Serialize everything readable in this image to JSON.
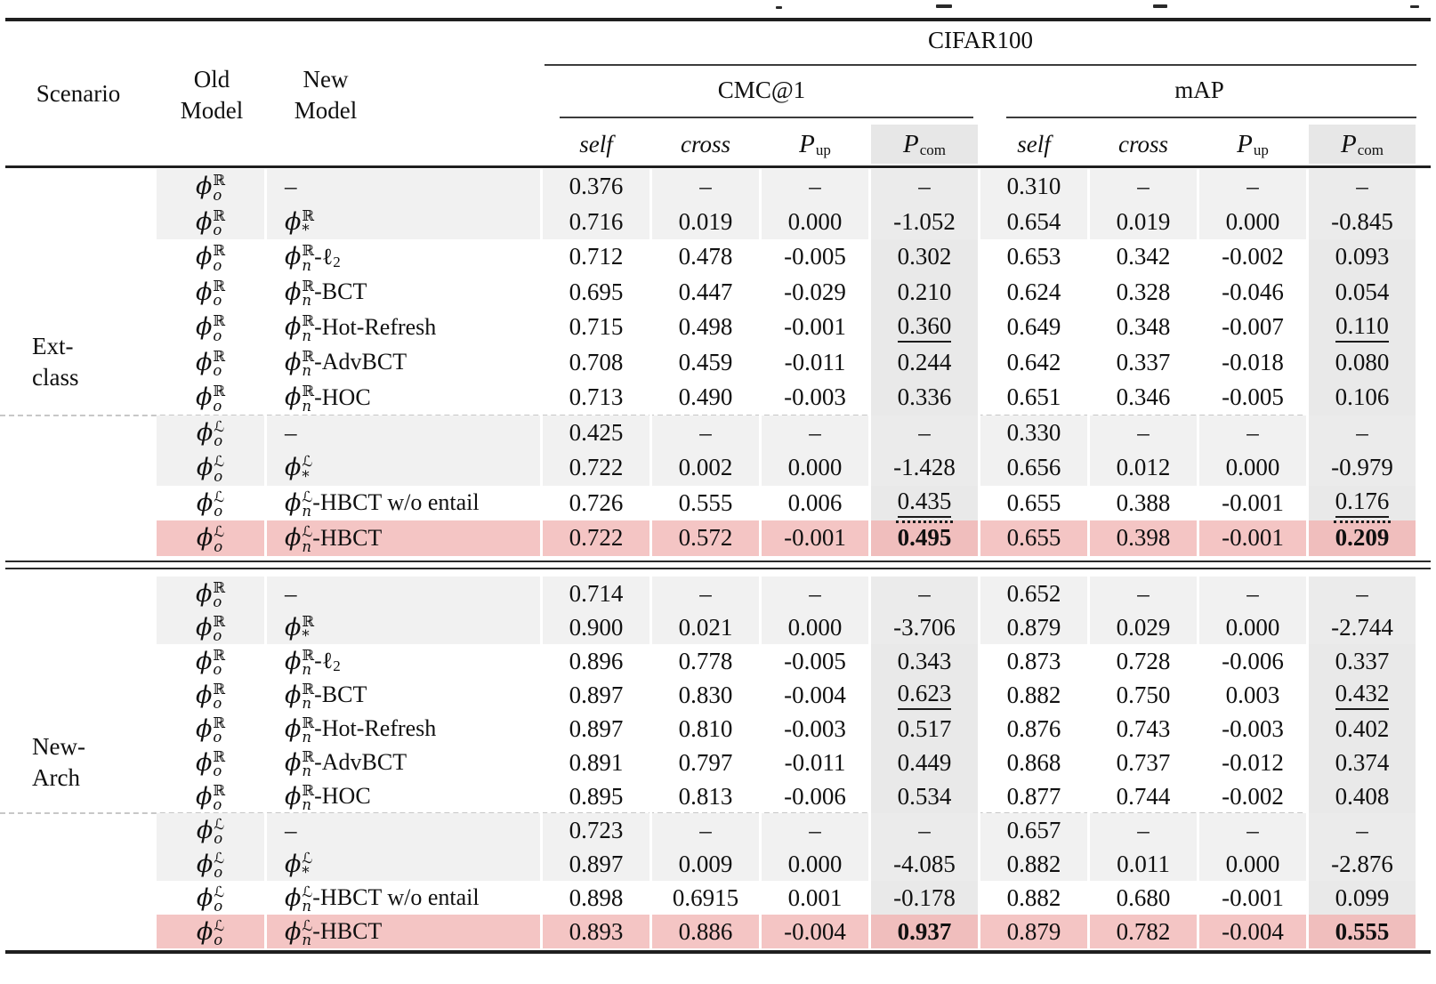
{
  "table": {
    "dataset_header": "CIFAR100",
    "group_headers": [
      "CMC@1",
      "mAP"
    ],
    "sub_headers": [
      {
        "label": "self",
        "italic": true
      },
      {
        "label": "cross",
        "italic": true
      },
      {
        "label": "P",
        "script": true,
        "sub": "up"
      },
      {
        "label": "P",
        "script": true,
        "sub": "com",
        "shaded": true
      }
    ],
    "left_headers": {
      "scenario": "Scenario",
      "old": [
        "Old",
        "Model"
      ],
      "new": [
        "New",
        "Model"
      ]
    },
    "empty_cell": "–",
    "colors": {
      "highlight_row": "#f4c5c4",
      "alt_row": "#f1f1f1",
      "pcom_band": "#e9e9e9",
      "header_band": "#e7e7e7"
    },
    "sections": [
      {
        "scenario_lines": [
          "Ext-",
          "class"
        ],
        "rows": [
          {
            "bg": "gray",
            "old": {
              "sup": "ℝ",
              "sub": "o"
            },
            "new": null,
            "cells": [
              "0.376",
              "–",
              "–",
              "–",
              "0.310",
              "–",
              "–",
              "–"
            ]
          },
          {
            "bg": "gray",
            "old": {
              "sup": "ℝ",
              "sub": "o"
            },
            "new": {
              "sup": "ℝ",
              "sub": "*"
            },
            "cells": [
              "0.716",
              "0.019",
              "0.000",
              "-1.052",
              "0.654",
              "0.019",
              "0.000",
              "-0.845"
            ]
          },
          {
            "bg": "white",
            "old": {
              "sup": "ℝ",
              "sub": "o"
            },
            "new": {
              "sup": "ℝ",
              "sub": "n",
              "suffix": "-ℓ",
              "suffix_sub": "2"
            },
            "cells": [
              "0.712",
              "0.478",
              "-0.005",
              "0.302",
              "0.653",
              "0.342",
              "-0.002",
              "0.093"
            ]
          },
          {
            "bg": "white",
            "old": {
              "sup": "ℝ",
              "sub": "o"
            },
            "new": {
              "sup": "ℝ",
              "sub": "n",
              "suffix": "-BCT"
            },
            "cells": [
              "0.695",
              "0.447",
              "-0.029",
              "0.210",
              "0.624",
              "0.328",
              "-0.046",
              "0.054"
            ]
          },
          {
            "bg": "white",
            "old": {
              "sup": "ℝ",
              "sub": "o"
            },
            "new": {
              "sup": "ℝ",
              "sub": "n",
              "suffix": "-Hot-Refresh"
            },
            "cells": [
              "0.715",
              "0.498",
              "-0.001",
              "0.360",
              "0.649",
              "0.348",
              "-0.007",
              "0.110"
            ],
            "marks": {
              "3": "u",
              "7": "u"
            }
          },
          {
            "bg": "white",
            "old": {
              "sup": "ℝ",
              "sub": "o"
            },
            "new": {
              "sup": "ℝ",
              "sub": "n",
              "suffix": "-AdvBCT"
            },
            "cells": [
              "0.708",
              "0.459",
              "-0.011",
              "0.244",
              "0.642",
              "0.337",
              "-0.018",
              "0.080"
            ]
          },
          {
            "bg": "white",
            "old": {
              "sup": "ℝ",
              "sub": "o"
            },
            "new": {
              "sup": "ℝ",
              "sub": "n",
              "suffix": "-HOC"
            },
            "cells": [
              "0.713",
              "0.490",
              "-0.003",
              "0.336",
              "0.651",
              "0.346",
              "-0.005",
              "0.106"
            ]
          },
          {
            "bg": "gray",
            "old": {
              "sup": "ℒ",
              "sub": "o"
            },
            "new": null,
            "cells": [
              "0.425",
              "–",
              "–",
              "–",
              "0.330",
              "–",
              "–",
              "–"
            ]
          },
          {
            "bg": "gray",
            "old": {
              "sup": "ℒ",
              "sub": "o"
            },
            "new": {
              "sup": "ℒ",
              "sub": "*"
            },
            "cells": [
              "0.722",
              "0.002",
              "0.000",
              "-1.428",
              "0.656",
              "0.012",
              "0.000",
              "-0.979"
            ]
          },
          {
            "bg": "white",
            "old": {
              "sup": "ℒ",
              "sub": "o"
            },
            "new": {
              "sup": "ℒ",
              "sub": "n",
              "suffix": "-HBCT w/o entail"
            },
            "cells": [
              "0.726",
              "0.555",
              "0.006",
              "0.435",
              "0.655",
              "0.388",
              "-0.001",
              "0.176"
            ],
            "marks": {
              "3": "ud",
              "7": "ud"
            }
          },
          {
            "bg": "pink",
            "old": {
              "sup": "ℒ",
              "sub": "o"
            },
            "new": {
              "sup": "ℒ",
              "sub": "n",
              "suffix": "-HBCT"
            },
            "cells": [
              "0.722",
              "0.572",
              "-0.001",
              "0.495",
              "0.655",
              "0.398",
              "-0.001",
              "0.209"
            ],
            "marks": {
              "3": "b",
              "7": "b"
            }
          }
        ]
      },
      {
        "scenario_lines": [
          "New-",
          "Arch"
        ],
        "rows": [
          {
            "bg": "gray",
            "old": {
              "sup": "ℝ",
              "sub": "o"
            },
            "new": null,
            "cells": [
              "0.714",
              "–",
              "–",
              "–",
              "0.652",
              "–",
              "–",
              "–"
            ]
          },
          {
            "bg": "gray",
            "old": {
              "sup": "ℝ",
              "sub": "o"
            },
            "new": {
              "sup": "ℝ",
              "sub": "*"
            },
            "cells": [
              "0.900",
              "0.021",
              "0.000",
              "-3.706",
              "0.879",
              "0.029",
              "0.000",
              "-2.744"
            ]
          },
          {
            "bg": "white",
            "old": {
              "sup": "ℝ",
              "sub": "o"
            },
            "new": {
              "sup": "ℝ",
              "sub": "n",
              "suffix": "-ℓ",
              "suffix_sub": "2"
            },
            "cells": [
              "0.896",
              "0.778",
              "-0.005",
              "0.343",
              "0.873",
              "0.728",
              "-0.006",
              "0.337"
            ]
          },
          {
            "bg": "white",
            "old": {
              "sup": "ℝ",
              "sub": "o"
            },
            "new": {
              "sup": "ℝ",
              "sub": "n",
              "suffix": "-BCT"
            },
            "cells": [
              "0.897",
              "0.830",
              "-0.004",
              "0.623",
              "0.882",
              "0.750",
              "0.003",
              "0.432"
            ],
            "marks": {
              "3": "u",
              "7": "u"
            }
          },
          {
            "bg": "white",
            "old": {
              "sup": "ℝ",
              "sub": "o"
            },
            "new": {
              "sup": "ℝ",
              "sub": "n",
              "suffix": "-Hot-Refresh"
            },
            "cells": [
              "0.897",
              "0.810",
              "-0.003",
              "0.517",
              "0.876",
              "0.743",
              "-0.003",
              "0.402"
            ]
          },
          {
            "bg": "white",
            "old": {
              "sup": "ℝ",
              "sub": "o"
            },
            "new": {
              "sup": "ℝ",
              "sub": "n",
              "suffix": "-AdvBCT"
            },
            "cells": [
              "0.891",
              "0.797",
              "-0.011",
              "0.449",
              "0.868",
              "0.737",
              "-0.012",
              "0.374"
            ]
          },
          {
            "bg": "white",
            "old": {
              "sup": "ℝ",
              "sub": "o"
            },
            "new": {
              "sup": "ℝ",
              "sub": "n",
              "suffix": "-HOC"
            },
            "cells": [
              "0.895",
              "0.813",
              "-0.006",
              "0.534",
              "0.877",
              "0.744",
              "-0.002",
              "0.408"
            ]
          },
          {
            "bg": "gray",
            "old": {
              "sup": "ℒ",
              "sub": "o"
            },
            "new": null,
            "cells": [
              "0.723",
              "–",
              "–",
              "–",
              "0.657",
              "–",
              "–",
              "–"
            ]
          },
          {
            "bg": "gray",
            "old": {
              "sup": "ℒ",
              "sub": "o"
            },
            "new": {
              "sup": "ℒ",
              "sub": "*"
            },
            "cells": [
              "0.897",
              "0.009",
              "0.000",
              "-4.085",
              "0.882",
              "0.011",
              "0.000",
              "-2.876"
            ]
          },
          {
            "bg": "white",
            "old": {
              "sup": "ℒ",
              "sub": "o"
            },
            "new": {
              "sup": "ℒ",
              "sub": "n",
              "suffix": "-HBCT w/o entail"
            },
            "cells": [
              "0.898",
              "0.6915",
              "0.001",
              "-0.178",
              "0.882",
              "0.680",
              "-0.001",
              "0.099"
            ]
          },
          {
            "bg": "pink",
            "old": {
              "sup": "ℒ",
              "sub": "o"
            },
            "new": {
              "sup": "ℒ",
              "sub": "n",
              "suffix": "-HBCT"
            },
            "cells": [
              "0.893",
              "0.886",
              "-0.004",
              "0.937",
              "0.879",
              "0.782",
              "-0.004",
              "0.555"
            ],
            "marks": {
              "3": "b",
              "7": "b"
            }
          }
        ]
      }
    ]
  }
}
